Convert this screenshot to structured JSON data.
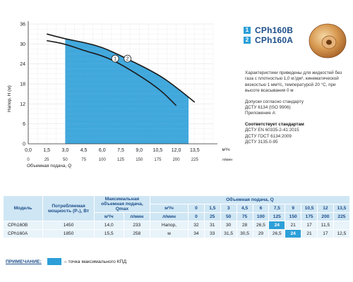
{
  "chart_data": {
    "type": "line",
    "ylabel": "Напор, H (м)",
    "xlabel": "Объемная подача, Q",
    "x_unit_top": "м³/ч",
    "x_unit_bottom": "л/мин",
    "ylim": [
      0,
      36
    ],
    "xlim": [
      0,
      15
    ],
    "y_ticks": [
      "0",
      "6",
      "12",
      "18",
      "24",
      "30",
      "36"
    ],
    "x_ticks_top": [
      "0,0",
      "1,5",
      "3,0",
      "4,5",
      "6,0",
      "7,5",
      "9,0",
      "10,5",
      "12,0",
      "13,5"
    ],
    "x_ticks_bottom": [
      "0",
      "25",
      "50",
      "75",
      "100",
      "125",
      "150",
      "175",
      "200",
      "225"
    ],
    "grid": true,
    "series": [
      {
        "name": "CPh160B",
        "label_number": "1",
        "x": [
          1.5,
          3.0,
          4.5,
          6.0,
          7.5,
          10.5,
          12.0
        ],
        "y": [
          31,
          30,
          28,
          26.5,
          24,
          17,
          11.5
        ]
      },
      {
        "name": "CPh160A",
        "label_number": "2",
        "x": [
          1.5,
          3.0,
          4.5,
          6.0,
          7.5,
          10.5,
          12.0,
          13.5
        ],
        "y": [
          33,
          31.5,
          30.5,
          29,
          26.5,
          21,
          17,
          12.5
        ]
      }
    ],
    "efficiency_zone_x": [
      3.0,
      13.0
    ],
    "efficiency_color": "#2c9fd8"
  },
  "legend": [
    {
      "number": "1",
      "name": "CPh160B"
    },
    {
      "number": "2",
      "name": "CPh160A"
    }
  ],
  "notes": {
    "characteristics": "Характеристики приведены для жидкостей без газа с плотностью 1,0 кг/дм³, кинематической вязкостью 1 мм²/с, температурой 20 °С, при высоте всасывания 0 м",
    "approvals": [
      "Допуски согласно стандарту",
      "ДСТУ 6134 (ISO 9906)",
      "Приложение А"
    ],
    "standards_title": "Соответствует стандартам",
    "standards": [
      "ДСТУ EN 60335-2-41:2015",
      "ДСТУ ГОСТ 6134:2009",
      "ДСТУ 3135.0-95"
    ]
  },
  "table": {
    "h_model": "Модель",
    "h_power": "Потребляемая мощность (P₁), Вт",
    "h_qmax": "Максимальная объемная подача, Qmax",
    "h_flow": "Объемная подача, Q",
    "unit_m3h": "м³/ч",
    "unit_lmin": "л/мин",
    "flow_m3h": [
      "0",
      "1,5",
      "3",
      "4,5",
      "6",
      "7,5",
      "9",
      "10,5",
      "12",
      "13,5"
    ],
    "flow_lmin": [
      "0",
      "25",
      "50",
      "75",
      "100",
      "125",
      "150",
      "175",
      "200",
      "225"
    ],
    "head_label_1": "Напор,",
    "head_label_2": "м",
    "rows": [
      {
        "model": "CPh160B",
        "power": "1450",
        "qmax_m3h": "14,0",
        "qmax_lmin": "233",
        "heads": [
          "32",
          "31",
          "30",
          "28",
          "26,5",
          "24",
          "21",
          "17",
          "11,5",
          ""
        ],
        "highlight": 5
      },
      {
        "model": "CPh160A",
        "power": "1850",
        "qmax_m3h": "15,5",
        "qmax_lmin": "258",
        "heads": [
          "34",
          "33",
          "31,5",
          "30,5",
          "29",
          "26,5",
          "24",
          "21",
          "17",
          "12,5"
        ],
        "highlight": 6
      }
    ]
  },
  "note": {
    "label": "ПРИМЕЧАНИЕ:",
    "text": "– точка максимального КПД"
  }
}
